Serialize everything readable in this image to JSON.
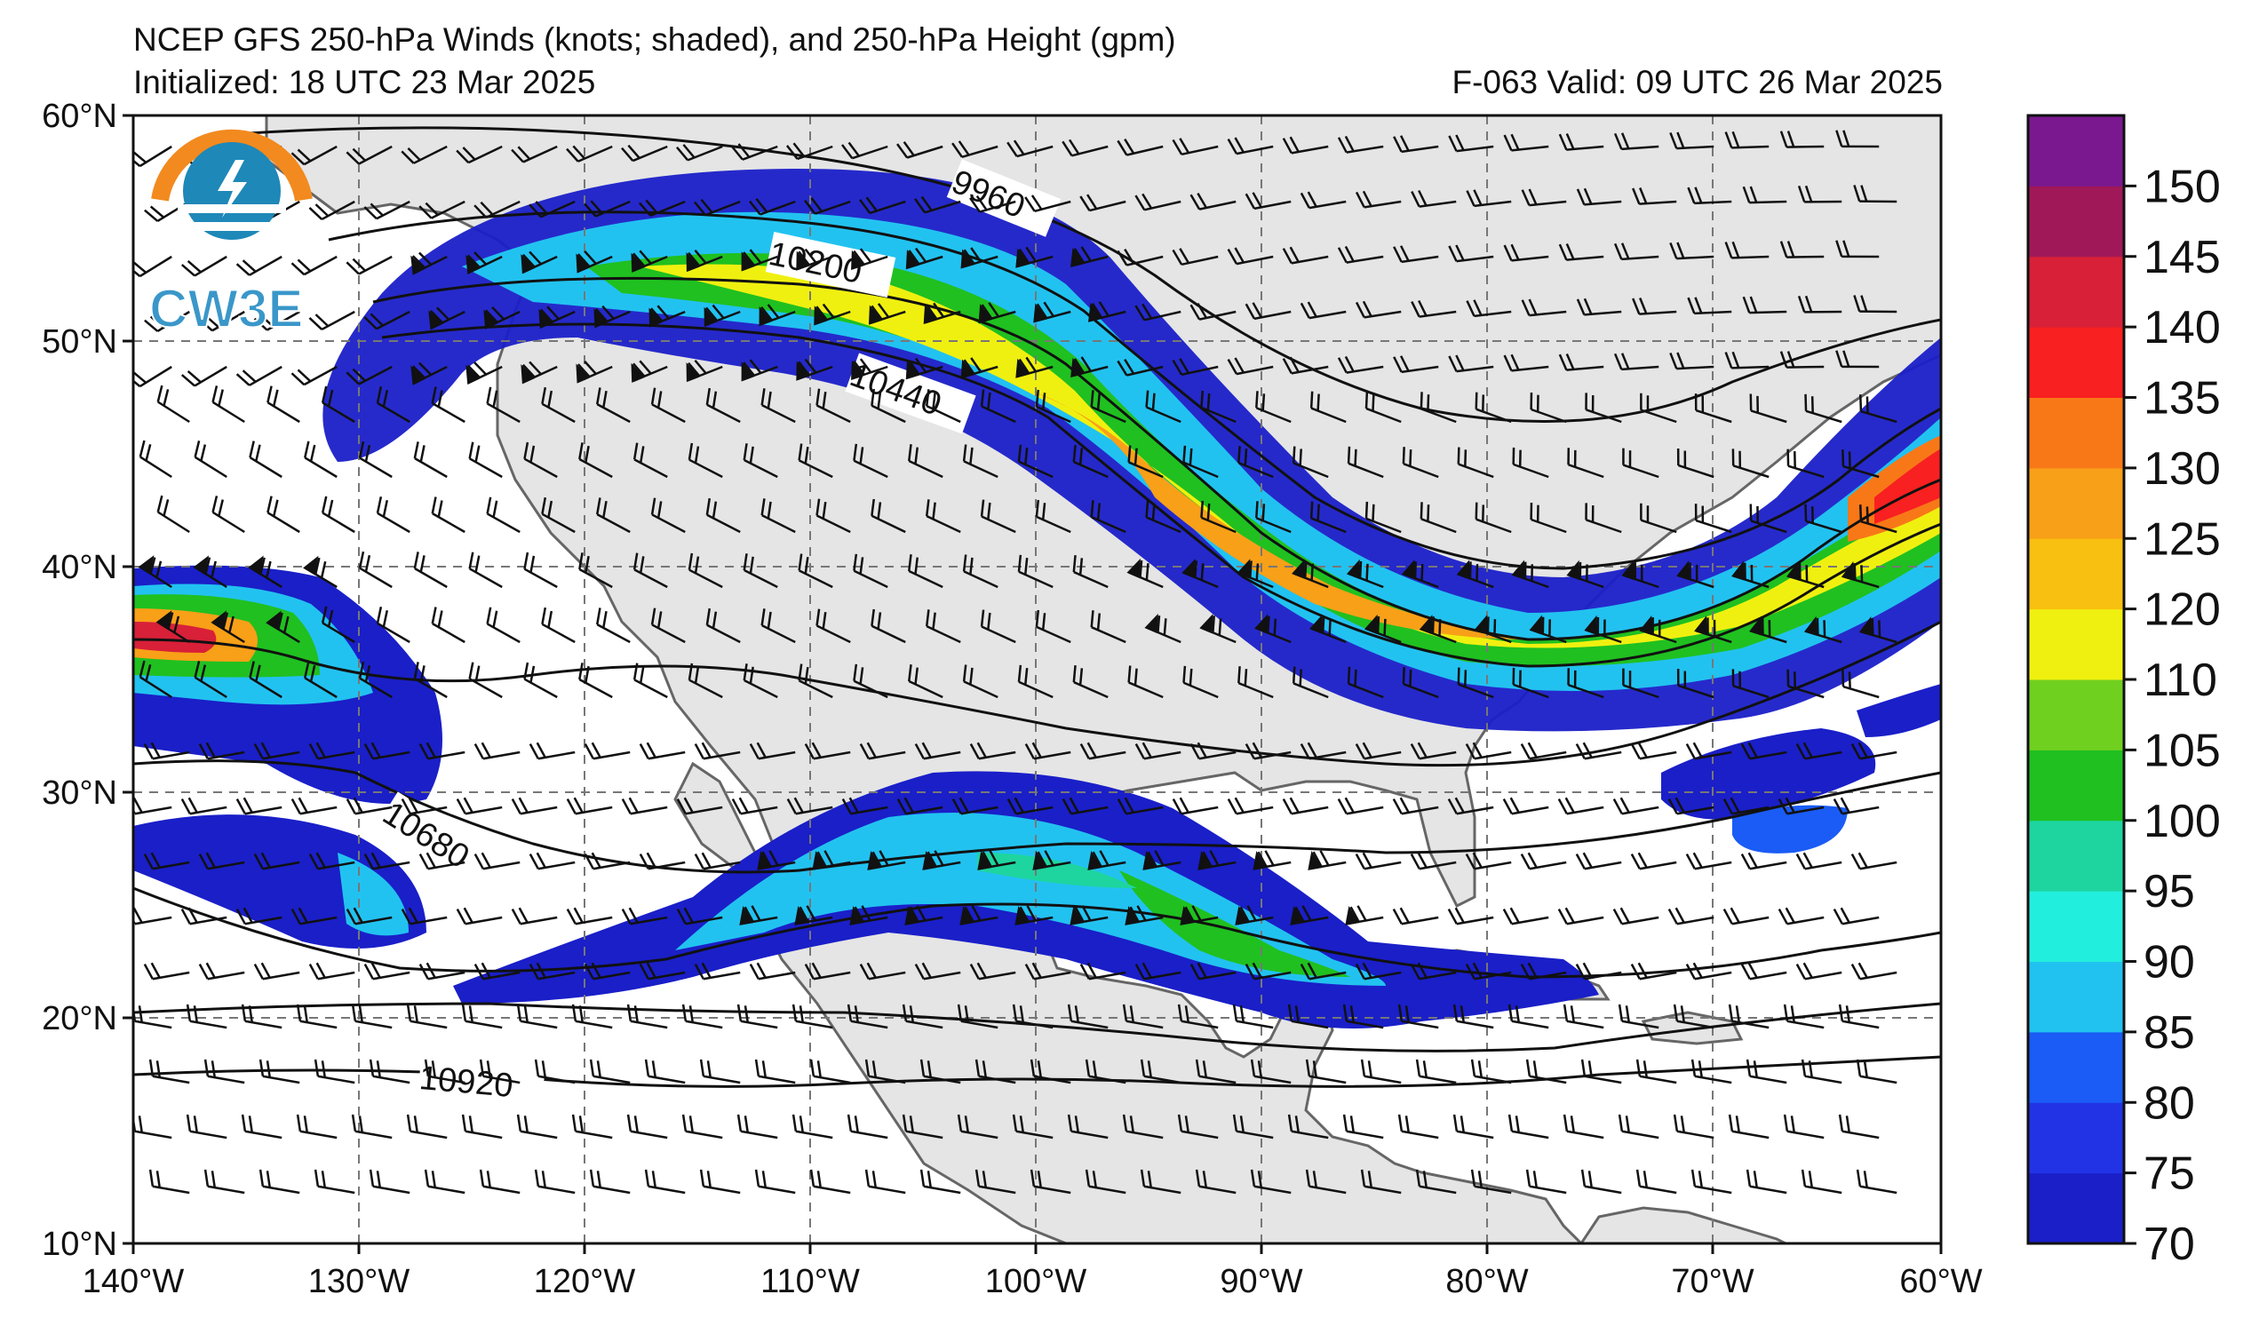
{
  "title": {
    "line1": "NCEP GFS 250-hPa Winds (knots; shaded), and 250-hPa Height (gpm)",
    "line2": "Initialized: 18 UTC 23 Mar 2025",
    "valid": "F-063  Valid: 09 UTC 26 Mar 2025"
  },
  "logo": {
    "text": "CW3E"
  },
  "axes": {
    "lat_labels": [
      "60°N",
      "50°N",
      "40°N",
      "30°N",
      "20°N",
      "10°N"
    ],
    "lon_labels": [
      "140°W",
      "130°W",
      "120°W",
      "110°W",
      "100°W",
      "90°W",
      "80°W",
      "70°W",
      "60°W"
    ],
    "lon_range": [
      -140,
      -60
    ],
    "lat_range": [
      10,
      60
    ]
  },
  "contour_labels": [
    "9960",
    "10200",
    "10440",
    "10680",
    "10920"
  ],
  "colorbar": {
    "ticks": [
      "150",
      "145",
      "140",
      "135",
      "130",
      "125",
      "120",
      "110",
      "105",
      "100",
      "95",
      "90",
      "85",
      "80",
      "75",
      "70"
    ],
    "colors": [
      "#1a1fc8",
      "#2233e6",
      "#1a5cf5",
      "#22c2f0",
      "#22eedd",
      "#1ed5a0",
      "#20c020",
      "#70d020",
      "#f0f010",
      "#f8c010",
      "#f8a018",
      "#f87818",
      "#f82020",
      "#d82038",
      "#a01858",
      "#7a1890"
    ]
  },
  "colors": {
    "land": "#e5e5e5",
    "ocean": "#ffffff",
    "coast": "#666666",
    "contour": "#111111"
  }
}
